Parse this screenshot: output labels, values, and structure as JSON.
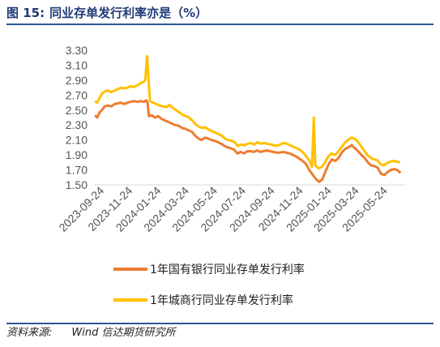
{
  "figure": {
    "number": "图 15:",
    "title": "同业存单发行利率亦是（%）",
    "source_label": "资料来源:",
    "source_text": "Wind  信达期货研究所"
  },
  "chart_data": {
    "type": "line",
    "title": "",
    "xlabel": "",
    "ylabel": "",
    "ylim": [
      1.5,
      3.3
    ],
    "yticks": [
      1.5,
      1.7,
      1.9,
      2.1,
      2.3,
      2.5,
      2.7,
      2.9,
      3.1,
      3.3
    ],
    "ytick_labels": [
      "1.50",
      "1.70",
      "1.90",
      "2.10",
      "2.30",
      "2.50",
      "2.70",
      "2.90",
      "3.10",
      "3.30"
    ],
    "xlim": [
      "2023-09-01",
      "2025-06-30"
    ],
    "xticks": [
      "2023-09-24",
      "2023-11-24",
      "2024-01-24",
      "2024-03-24",
      "2024-05-24",
      "2024-07-24",
      "2024-09-24",
      "2024-11-24",
      "2025-01-24",
      "2025-03-24",
      "2025-05-24"
    ],
    "grid": false,
    "legend_position": "bottom",
    "series": [
      {
        "name": "1年国有银行同业存单发行利率",
        "color": "#ed7d31",
        "points": [
          [
            "2023-09-03",
            2.43
          ],
          [
            "2023-09-08",
            2.4
          ],
          [
            "2023-09-13",
            2.47
          ],
          [
            "2023-09-18",
            2.5
          ],
          [
            "2023-09-24",
            2.55
          ],
          [
            "2023-10-01",
            2.56
          ],
          [
            "2023-10-08",
            2.55
          ],
          [
            "2023-10-15",
            2.58
          ],
          [
            "2023-10-22",
            2.59
          ],
          [
            "2023-10-29",
            2.6
          ],
          [
            "2023-11-05",
            2.58
          ],
          [
            "2023-11-12",
            2.6
          ],
          [
            "2023-11-19",
            2.61
          ],
          [
            "2023-11-26",
            2.62
          ],
          [
            "2023-12-03",
            2.61
          ],
          [
            "2023-12-10",
            2.62
          ],
          [
            "2023-12-17",
            2.61
          ],
          [
            "2023-12-22",
            2.63
          ],
          [
            "2023-12-25",
            2.6
          ],
          [
            "2023-12-28",
            2.42
          ],
          [
            "2024-01-03",
            2.43
          ],
          [
            "2024-01-10",
            2.4
          ],
          [
            "2024-01-17",
            2.42
          ],
          [
            "2024-01-24",
            2.38
          ],
          [
            "2024-02-01",
            2.36
          ],
          [
            "2024-02-08",
            2.34
          ],
          [
            "2024-02-15",
            2.32
          ],
          [
            "2024-02-22",
            2.3
          ],
          [
            "2024-03-01",
            2.29
          ],
          [
            "2024-03-08",
            2.26
          ],
          [
            "2024-03-15",
            2.25
          ],
          [
            "2024-03-22",
            2.23
          ],
          [
            "2024-03-29",
            2.21
          ],
          [
            "2024-04-05",
            2.16
          ],
          [
            "2024-04-12",
            2.12
          ],
          [
            "2024-04-19",
            2.1
          ],
          [
            "2024-04-26",
            2.13
          ],
          [
            "2024-05-03",
            2.12
          ],
          [
            "2024-05-10",
            2.1
          ],
          [
            "2024-05-17",
            2.09
          ],
          [
            "2024-05-24",
            2.07
          ],
          [
            "2024-05-31",
            2.05
          ],
          [
            "2024-06-07",
            2.02
          ],
          [
            "2024-06-14",
            2.0
          ],
          [
            "2024-06-21",
            1.99
          ],
          [
            "2024-06-28",
            1.97
          ],
          [
            "2024-07-05",
            1.92
          ],
          [
            "2024-07-12",
            1.94
          ],
          [
            "2024-07-19",
            1.92
          ],
          [
            "2024-07-26",
            1.95
          ],
          [
            "2024-08-02",
            1.95
          ],
          [
            "2024-08-09",
            1.94
          ],
          [
            "2024-08-16",
            1.96
          ],
          [
            "2024-08-23",
            1.94
          ],
          [
            "2024-08-30",
            1.95
          ],
          [
            "2024-09-06",
            1.96
          ],
          [
            "2024-09-13",
            1.95
          ],
          [
            "2024-09-20",
            1.94
          ],
          [
            "2024-09-27",
            1.93
          ],
          [
            "2024-10-04",
            1.93
          ],
          [
            "2024-10-11",
            1.94
          ],
          [
            "2024-10-18",
            1.93
          ],
          [
            "2024-10-25",
            1.92
          ],
          [
            "2024-11-01",
            1.9
          ],
          [
            "2024-11-08",
            1.88
          ],
          [
            "2024-11-15",
            1.85
          ],
          [
            "2024-11-22",
            1.82
          ],
          [
            "2024-11-29",
            1.78
          ],
          [
            "2024-12-06",
            1.7
          ],
          [
            "2024-12-13",
            1.64
          ],
          [
            "2024-12-20",
            1.58
          ],
          [
            "2024-12-27",
            1.54
          ],
          [
            "2025-01-03",
            1.57
          ],
          [
            "2025-01-10",
            1.68
          ],
          [
            "2025-01-17",
            1.78
          ],
          [
            "2025-01-24",
            1.84
          ],
          [
            "2025-01-31",
            1.82
          ],
          [
            "2025-02-07",
            1.86
          ],
          [
            "2025-02-14",
            1.93
          ],
          [
            "2025-02-21",
            1.98
          ],
          [
            "2025-02-28",
            2.0
          ],
          [
            "2025-03-07",
            2.03
          ],
          [
            "2025-03-14",
            1.99
          ],
          [
            "2025-03-21",
            1.95
          ],
          [
            "2025-03-28",
            1.9
          ],
          [
            "2025-04-04",
            1.86
          ],
          [
            "2025-04-11",
            1.8
          ],
          [
            "2025-04-18",
            1.76
          ],
          [
            "2025-04-25",
            1.75
          ],
          [
            "2025-05-02",
            1.73
          ],
          [
            "2025-05-09",
            1.65
          ],
          [
            "2025-05-16",
            1.63
          ],
          [
            "2025-05-23",
            1.67
          ],
          [
            "2025-05-30",
            1.7
          ],
          [
            "2025-06-06",
            1.71
          ],
          [
            "2025-06-13",
            1.7
          ],
          [
            "2025-06-20",
            1.66
          ]
        ]
      },
      {
        "name": "1年城商行同业存单发行利率",
        "color": "#ffc000",
        "points": [
          [
            "2023-09-03",
            2.62
          ],
          [
            "2023-09-08",
            2.6
          ],
          [
            "2023-09-13",
            2.66
          ],
          [
            "2023-09-18",
            2.72
          ],
          [
            "2023-09-24",
            2.75
          ],
          [
            "2023-10-01",
            2.76
          ],
          [
            "2023-10-08",
            2.74
          ],
          [
            "2023-10-15",
            2.76
          ],
          [
            "2023-10-22",
            2.78
          ],
          [
            "2023-10-29",
            2.8
          ],
          [
            "2023-11-05",
            2.79
          ],
          [
            "2023-11-12",
            2.8
          ],
          [
            "2023-11-19",
            2.82
          ],
          [
            "2023-11-26",
            2.81
          ],
          [
            "2023-12-03",
            2.83
          ],
          [
            "2023-12-10",
            2.86
          ],
          [
            "2023-12-17",
            2.88
          ],
          [
            "2023-12-20",
            2.9
          ],
          [
            "2023-12-24",
            3.22
          ],
          [
            "2023-12-27",
            2.92
          ],
          [
            "2023-12-30",
            2.62
          ],
          [
            "2024-01-06",
            2.6
          ],
          [
            "2024-01-13",
            2.58
          ],
          [
            "2024-01-20",
            2.56
          ],
          [
            "2024-01-27",
            2.55
          ],
          [
            "2024-02-03",
            2.54
          ],
          [
            "2024-02-10",
            2.57
          ],
          [
            "2024-02-17",
            2.53
          ],
          [
            "2024-02-24",
            2.5
          ],
          [
            "2024-03-02",
            2.47
          ],
          [
            "2024-03-09",
            2.44
          ],
          [
            "2024-03-16",
            2.42
          ],
          [
            "2024-03-23",
            2.4
          ],
          [
            "2024-03-30",
            2.36
          ],
          [
            "2024-04-06",
            2.31
          ],
          [
            "2024-04-13",
            2.28
          ],
          [
            "2024-04-20",
            2.26
          ],
          [
            "2024-04-27",
            2.27
          ],
          [
            "2024-05-04",
            2.24
          ],
          [
            "2024-05-11",
            2.22
          ],
          [
            "2024-05-18",
            2.2
          ],
          [
            "2024-05-25",
            2.18
          ],
          [
            "2024-06-01",
            2.16
          ],
          [
            "2024-06-08",
            2.12
          ],
          [
            "2024-06-15",
            2.1
          ],
          [
            "2024-06-22",
            2.09
          ],
          [
            "2024-06-29",
            2.07
          ],
          [
            "2024-07-06",
            2.02
          ],
          [
            "2024-07-13",
            2.04
          ],
          [
            "2024-07-20",
            2.03
          ],
          [
            "2024-07-27",
            2.05
          ],
          [
            "2024-08-03",
            2.06
          ],
          [
            "2024-08-10",
            2.04
          ],
          [
            "2024-08-17",
            2.07
          ],
          [
            "2024-08-24",
            2.05
          ],
          [
            "2024-08-31",
            2.06
          ],
          [
            "2024-09-07",
            2.05
          ],
          [
            "2024-09-14",
            2.04
          ],
          [
            "2024-09-21",
            2.03
          ],
          [
            "2024-09-28",
            2.02
          ],
          [
            "2024-10-05",
            2.04
          ],
          [
            "2024-10-12",
            2.06
          ],
          [
            "2024-10-19",
            2.05
          ],
          [
            "2024-10-26",
            2.03
          ],
          [
            "2024-11-02",
            2.01
          ],
          [
            "2024-11-09",
            1.99
          ],
          [
            "2024-11-16",
            1.97
          ],
          [
            "2024-11-23",
            1.93
          ],
          [
            "2024-11-30",
            1.88
          ],
          [
            "2024-12-07",
            1.82
          ],
          [
            "2024-12-12",
            1.74
          ],
          [
            "2024-12-16",
            2.4
          ],
          [
            "2024-12-19",
            1.76
          ],
          [
            "2024-12-26",
            1.72
          ],
          [
            "2025-01-02",
            1.74
          ],
          [
            "2025-01-09",
            1.8
          ],
          [
            "2025-01-16",
            1.88
          ],
          [
            "2025-01-23",
            1.92
          ],
          [
            "2025-01-30",
            1.9
          ],
          [
            "2025-02-06",
            1.94
          ],
          [
            "2025-02-13",
            2.0
          ],
          [
            "2025-02-20",
            2.06
          ],
          [
            "2025-02-27",
            2.1
          ],
          [
            "2025-03-06",
            2.13
          ],
          [
            "2025-03-13",
            2.12
          ],
          [
            "2025-03-20",
            2.08
          ],
          [
            "2025-03-27",
            2.02
          ],
          [
            "2025-04-03",
            1.96
          ],
          [
            "2025-04-10",
            1.9
          ],
          [
            "2025-04-17",
            1.86
          ],
          [
            "2025-04-24",
            1.84
          ],
          [
            "2025-05-01",
            1.83
          ],
          [
            "2025-05-08",
            1.78
          ],
          [
            "2025-05-15",
            1.76
          ],
          [
            "2025-05-22",
            1.79
          ],
          [
            "2025-05-29",
            1.81
          ],
          [
            "2025-06-05",
            1.82
          ],
          [
            "2025-06-12",
            1.81
          ],
          [
            "2025-06-19",
            1.8
          ]
        ]
      }
    ]
  }
}
